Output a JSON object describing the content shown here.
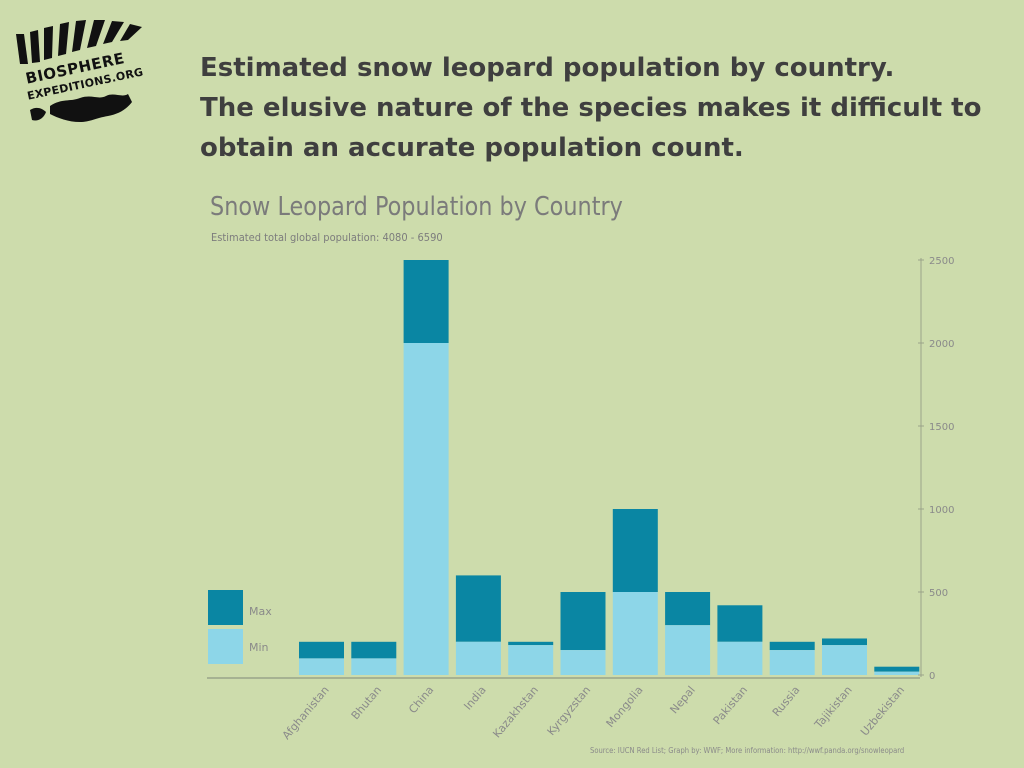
{
  "logo": {
    "line1": "BIOSPHERE",
    "line2": "EXPEDITIONS.ORG"
  },
  "headline": {
    "line1": "Estimated snow leopard population by country.",
    "line2": "The elusive nature of the species makes it difficult to",
    "line3": "obtain an accurate population count."
  },
  "colors": {
    "background": "#cddcac",
    "max": "#0a86a3",
    "min": "#8dd6e8",
    "axis": "#9aa38a"
  },
  "source": "Source: IUCN Red List; Graph by: WWF; More information: http://wwf.panda.org/snowleopard",
  "chart_data": {
    "type": "bar",
    "title": "Snow Leopard Population by Country",
    "subtitle": "Estimated total global population: 4080 - 6590",
    "categories": [
      "Afghanistan",
      "Bhutan",
      "China",
      "India",
      "Kazakhstan",
      "Kyrgyzstan",
      "Mongolia",
      "Nepal",
      "Pakistan",
      "Russia",
      "Tajikistan",
      "Uzbekistan"
    ],
    "series": [
      {
        "name": "Min",
        "values": [
          100,
          100,
          2000,
          200,
          180,
          150,
          500,
          300,
          200,
          150,
          180,
          20
        ]
      },
      {
        "name": "Max",
        "values": [
          200,
          200,
          2500,
          600,
          200,
          500,
          1000,
          500,
          420,
          200,
          220,
          50
        ]
      }
    ],
    "yticks": [
      0,
      500,
      1000,
      1500,
      2000,
      2500
    ],
    "ylim": [
      0,
      2500
    ],
    "y_axis_side": "right",
    "legend_position": "left",
    "grid": false
  }
}
